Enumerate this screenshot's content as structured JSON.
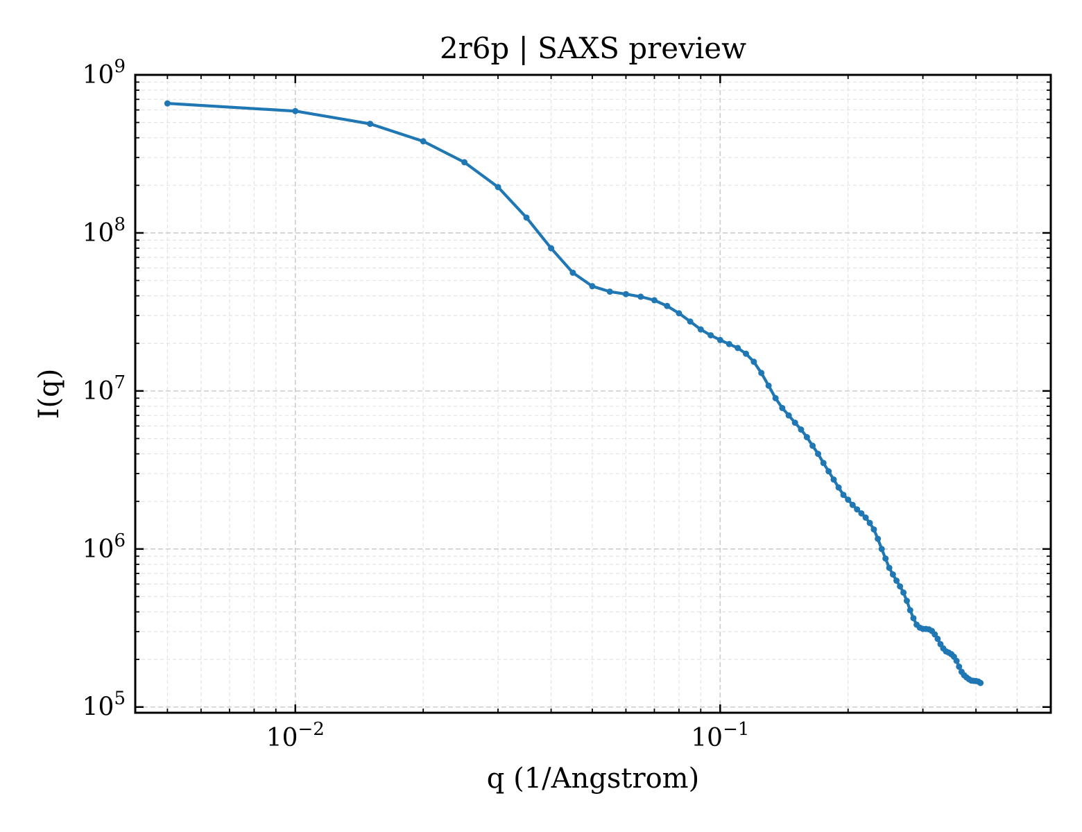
{
  "chart_data": {
    "type": "line",
    "title": "2r6p | SAXS preview",
    "xlabel": "q (1/Angstrom)",
    "ylabel": "I(q)",
    "x_scale": "log",
    "y_scale": "log",
    "xlim": [
      0.0042,
      0.6
    ],
    "ylim": [
      92000,
      1000000000
    ],
    "grid": true,
    "legend": "none",
    "x_ticks": [
      {
        "value": 0.01,
        "base": "10",
        "exp": "−2"
      },
      {
        "value": 0.1,
        "base": "10",
        "exp": "−1"
      }
    ],
    "y_ticks": [
      {
        "value": 100000,
        "base": "10",
        "exp": "5"
      },
      {
        "value": 1000000,
        "base": "10",
        "exp": "6"
      },
      {
        "value": 10000000,
        "base": "10",
        "exp": "7"
      },
      {
        "value": 100000000,
        "base": "10",
        "exp": "8"
      },
      {
        "value": 1000000000,
        "base": "10",
        "exp": "9"
      }
    ],
    "series": [
      {
        "color": "#1f77b4",
        "points": [
          [
            0.005,
            660000000
          ],
          [
            0.01,
            590000000
          ],
          [
            0.015,
            490000000
          ],
          [
            0.02,
            380000000
          ],
          [
            0.025,
            280000000
          ],
          [
            0.03,
            195000000
          ],
          [
            0.035,
            125000000
          ],
          [
            0.04,
            80000000
          ],
          [
            0.045,
            56000000
          ],
          [
            0.05,
            46000000
          ],
          [
            0.055,
            42500000
          ],
          [
            0.06,
            41000000
          ],
          [
            0.065,
            39500000
          ],
          [
            0.07,
            37500000
          ],
          [
            0.075,
            34500000
          ],
          [
            0.08,
            31000000
          ],
          [
            0.085,
            27500000
          ],
          [
            0.09,
            24500000
          ],
          [
            0.095,
            22500000
          ],
          [
            0.1,
            21000000
          ],
          [
            0.105,
            19800000
          ],
          [
            0.11,
            18700000
          ],
          [
            0.115,
            17200000
          ],
          [
            0.12,
            15300000
          ],
          [
            0.125,
            13000000
          ],
          [
            0.13,
            10800000
          ],
          [
            0.135,
            9000000
          ],
          [
            0.14,
            7800000
          ],
          [
            0.145,
            7000000
          ],
          [
            0.15,
            6300000
          ],
          [
            0.155,
            5700000
          ],
          [
            0.16,
            5100000
          ],
          [
            0.165,
            4500000
          ],
          [
            0.17,
            4000000
          ],
          [
            0.175,
            3500000
          ],
          [
            0.18,
            3100000
          ],
          [
            0.185,
            2750000
          ],
          [
            0.19,
            2450000
          ],
          [
            0.195,
            2200000
          ],
          [
            0.2,
            2050000
          ],
          [
            0.205,
            1900000
          ],
          [
            0.21,
            1780000
          ],
          [
            0.215,
            1680000
          ],
          [
            0.22,
            1580000
          ],
          [
            0.225,
            1460000
          ],
          [
            0.23,
            1330000
          ],
          [
            0.235,
            1160000
          ],
          [
            0.24,
            1000000
          ],
          [
            0.245,
            870000
          ],
          [
            0.25,
            760000
          ],
          [
            0.255,
            690000
          ],
          [
            0.26,
            630000
          ],
          [
            0.265,
            580000
          ],
          [
            0.27,
            530000
          ],
          [
            0.275,
            470000
          ],
          [
            0.28,
            410000
          ],
          [
            0.285,
            365000
          ],
          [
            0.29,
            332000
          ],
          [
            0.295,
            318000
          ],
          [
            0.3,
            312000
          ],
          [
            0.305,
            312000
          ],
          [
            0.31,
            310000
          ],
          [
            0.315,
            303000
          ],
          [
            0.32,
            288000
          ],
          [
            0.325,
            270000
          ],
          [
            0.33,
            250000
          ],
          [
            0.335,
            235000
          ],
          [
            0.34,
            225000
          ],
          [
            0.345,
            221000
          ],
          [
            0.35,
            216000
          ],
          [
            0.355,
            208000
          ],
          [
            0.36,
            196000
          ],
          [
            0.365,
            180000
          ],
          [
            0.37,
            167000
          ],
          [
            0.375,
            159000
          ],
          [
            0.38,
            154000
          ],
          [
            0.385,
            150000
          ],
          [
            0.39,
            147000
          ],
          [
            0.395,
            146500
          ],
          [
            0.4,
            146000
          ],
          [
            0.405,
            145000
          ],
          [
            0.41,
            142000
          ]
        ]
      }
    ]
  }
}
